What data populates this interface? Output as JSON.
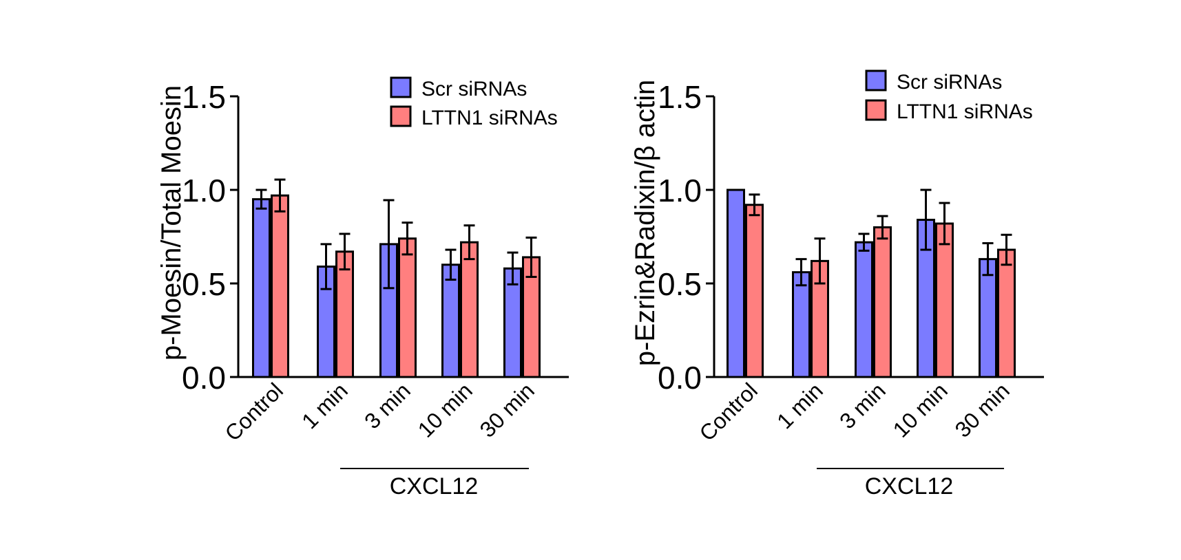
{
  "colors": {
    "scr": "#7b7bff",
    "lttn1": "#ff7f7f",
    "ink": "#000000"
  },
  "chart_data": [
    {
      "type": "bar",
      "ylabel": "p-Moesin/Total Moesin",
      "xlabel": "",
      "ylim": [
        0,
        1.5
      ],
      "yticks": [
        0.0,
        0.5,
        1.0,
        1.5
      ],
      "ytick_labels": [
        "0.0",
        "0.5",
        "1.0",
        "1.5"
      ],
      "categories": [
        "Control",
        "1 min",
        "3 min",
        "10 min",
        "30 min"
      ],
      "group_label": "CXCL12",
      "legend": [
        "Scr siRNAs",
        "LTTN1 siRNAs"
      ],
      "legend_position": "top-right",
      "series": [
        {
          "name": "Scr siRNAs",
          "values": [
            0.95,
            0.59,
            0.71,
            0.6,
            0.58
          ],
          "errors": [
            0.05,
            0.12,
            0.235,
            0.08,
            0.085
          ]
        },
        {
          "name": "LTTN1 siRNAs",
          "values": [
            0.97,
            0.67,
            0.74,
            0.72,
            0.64
          ],
          "errors": [
            0.085,
            0.095,
            0.085,
            0.09,
            0.105
          ]
        }
      ]
    },
    {
      "type": "bar",
      "ylabel": "p-Ezrin&Radixin/β actin",
      "xlabel": "",
      "ylim": [
        0,
        1.5
      ],
      "yticks": [
        0.0,
        0.5,
        1.0,
        1.5
      ],
      "ytick_labels": [
        "0.0",
        "0.5",
        "1.0",
        "1.5"
      ],
      "categories": [
        "Control",
        "1 min",
        "3 min",
        "10 min",
        "30 min"
      ],
      "group_label": "CXCL12",
      "legend": [
        "Scr siRNAs",
        "LTTN1 siRNAs"
      ],
      "legend_position": "top-right",
      "series": [
        {
          "name": "Scr siRNAs",
          "values": [
            1.0,
            0.56,
            0.72,
            0.84,
            0.63
          ],
          "errors": [
            0.0,
            0.07,
            0.045,
            0.16,
            0.085
          ]
        },
        {
          "name": "LTTN1 siRNAs",
          "values": [
            0.92,
            0.62,
            0.8,
            0.82,
            0.68
          ],
          "errors": [
            0.055,
            0.12,
            0.06,
            0.11,
            0.08
          ]
        }
      ]
    }
  ]
}
